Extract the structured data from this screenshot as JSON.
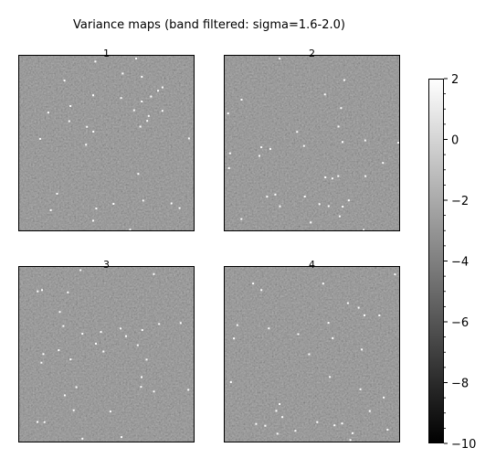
{
  "figure": {
    "title": "Variance maps (band filtered: sigma=1.6-2.0)"
  },
  "chart_data": {
    "type": "heatmap",
    "title": "Variance maps (band filtered: sigma=1.6-2.0)",
    "colormap": "gray",
    "grid": false,
    "axes_ticks_visible": false,
    "panels": [
      {
        "label": "1",
        "background_level": -4.6,
        "texture": "fine noise",
        "bright_speckles": true
      },
      {
        "label": "2",
        "background_level": -4.6,
        "texture": "fine noise",
        "bright_speckles": true
      },
      {
        "label": "3",
        "background_level": -4.6,
        "texture": "fine noise",
        "bright_speckles": true
      },
      {
        "label": "4",
        "background_level": -4.6,
        "texture": "fine noise",
        "bright_speckles": true
      }
    ],
    "colorbar": {
      "range": [
        -10,
        2
      ],
      "placement": "right",
      "tick_values": [
        2,
        0,
        -2,
        -4,
        -6,
        -8,
        -10
      ],
      "tick_labels": [
        "2",
        "0",
        "−2",
        "−4",
        "−6",
        "−8",
        "−10"
      ]
    }
  }
}
